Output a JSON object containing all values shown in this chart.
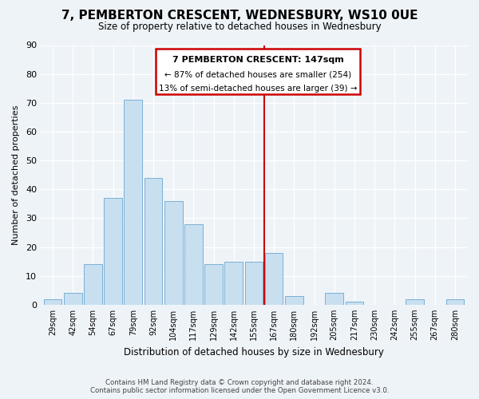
{
  "title": "7, PEMBERTON CRESCENT, WEDNESBURY, WS10 0UE",
  "subtitle": "Size of property relative to detached houses in Wednesbury",
  "xlabel": "Distribution of detached houses by size in Wednesbury",
  "ylabel": "Number of detached properties",
  "bar_labels": [
    "29sqm",
    "42sqm",
    "54sqm",
    "67sqm",
    "79sqm",
    "92sqm",
    "104sqm",
    "117sqm",
    "129sqm",
    "142sqm",
    "155sqm",
    "167sqm",
    "180sqm",
    "192sqm",
    "205sqm",
    "217sqm",
    "230sqm",
    "242sqm",
    "255sqm",
    "267sqm",
    "280sqm"
  ],
  "bar_values": [
    2,
    4,
    14,
    37,
    71,
    44,
    36,
    28,
    14,
    15,
    15,
    18,
    3,
    0,
    4,
    1,
    0,
    0,
    2,
    0,
    2
  ],
  "bar_color": "#c8dff0",
  "bar_edge_color": "#7ab0d4",
  "reference_line_x": 10.5,
  "annotation_title": "7 PEMBERTON CRESCENT: 147sqm",
  "annotation_line1": "← 87% of detached houses are smaller (254)",
  "annotation_line2": "13% of semi-detached houses are larger (39) →",
  "annotation_box_color": "#ffffff",
  "annotation_box_edge": "#cc0000",
  "line_color": "#cc0000",
  "ylim": [
    0,
    90
  ],
  "yticks": [
    0,
    10,
    20,
    30,
    40,
    50,
    60,
    70,
    80,
    90
  ],
  "footer": "Contains HM Land Registry data © Crown copyright and database right 2024.\nContains public sector information licensed under the Open Government Licence v3.0.",
  "bg_color": "#eef3f8",
  "plot_bg_color": "#eef3f8",
  "grid_color": "#ffffff"
}
